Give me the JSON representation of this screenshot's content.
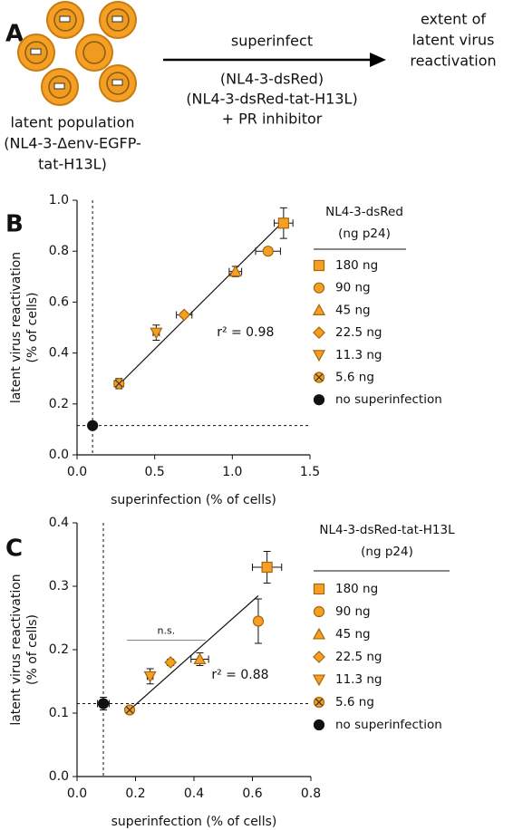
{
  "schematic": {
    "panel_label": "A",
    "arrow_label": "superinfect",
    "arrow_lines": [
      "(NL4-3-dsRed)",
      "(NL4-3-dsRed-tat-H13L)",
      "+ PR inhibitor"
    ],
    "outcome_lines": [
      "extent of",
      "latent virus",
      "reactivation"
    ],
    "population_lines": [
      "latent population",
      "(NL4-3-Δenv-EGFP-",
      "tat-H13L)"
    ]
  },
  "chart_data": [
    {
      "type": "scatter",
      "panel_label": "B",
      "xlabel": "superinfection (% of cells)",
      "ylabel_lines": [
        "latent virus reactivation",
        "(% of cells)"
      ],
      "xlim": [
        0,
        1.5
      ],
      "xticks": [
        {
          "value": 0,
          "label": "0.0"
        },
        0.5,
        {
          "value": 1,
          "label": "1.0"
        },
        1.5
      ],
      "ylim": [
        0,
        1
      ],
      "yticks": [
        {
          "value": 0,
          "label": "0.0"
        },
        0.2,
        0.4,
        0.6,
        0.8,
        {
          "value": 1,
          "label": "1.0"
        }
      ],
      "legend_title_lines": [
        "NL4-3-dsRed",
        "(ng p24)"
      ],
      "reference_x": 0.1,
      "reference_y": 0.115,
      "fit_line": {
        "x": [
          0.26,
          1.35
        ],
        "y": [
          0.27,
          0.93
        ]
      },
      "annotation": "r²  = 0.98",
      "annotation_at": [
        0.9,
        0.48
      ],
      "series": [
        {
          "name": "180 ng",
          "marker": "square",
          "color": "#f5a023",
          "x": [
            1.33
          ],
          "values": [
            0.91
          ],
          "xerr": [
            0.06
          ],
          "yerr": [
            0.06
          ]
        },
        {
          "name": "90 ng",
          "marker": "circle",
          "color": "#f5a023",
          "x": [
            1.23
          ],
          "values": [
            0.8
          ],
          "xerr": [
            0.08
          ],
          "yerr": [
            0.01
          ]
        },
        {
          "name": "45 ng",
          "marker": "triangle-up",
          "color": "#f5a023",
          "x": [
            1.02
          ],
          "values": [
            0.72
          ],
          "xerr": [
            0.04
          ],
          "yerr": [
            0.02
          ]
        },
        {
          "name": "22.5 ng",
          "marker": "diamond",
          "color": "#f5a023",
          "x": [
            0.69
          ],
          "values": [
            0.55
          ],
          "xerr": [
            0.05
          ],
          "yerr": [
            0.01
          ]
        },
        {
          "name": "11.3 ng",
          "marker": "triangle-down",
          "color": "#f5a023",
          "x": [
            0.51
          ],
          "values": [
            0.48
          ],
          "xerr": [
            0.02
          ],
          "yerr": [
            0.03
          ]
        },
        {
          "name": "5.6 ng",
          "marker": "circle-x",
          "color": "#f5a023",
          "x": [
            0.27
          ],
          "values": [
            0.28
          ],
          "xerr": [
            0.03
          ],
          "yerr": [
            0.02
          ]
        },
        {
          "name": "no superinfection",
          "marker": "circle",
          "color": "#111111",
          "x": [
            0.1
          ],
          "values": [
            0.115
          ],
          "xerr": [
            0.01
          ],
          "yerr": [
            0.01
          ]
        }
      ]
    },
    {
      "type": "scatter",
      "panel_label": "C",
      "xlabel": "superinfection (% of cells)",
      "ylabel_lines": [
        "latent virus reactivation",
        "(% of cells)"
      ],
      "xlim": [
        0,
        0.8
      ],
      "xticks": [
        {
          "value": 0,
          "label": "0.0"
        },
        0.2,
        0.4,
        0.6,
        0.8
      ],
      "ylim": [
        0,
        0.4
      ],
      "yticks": [
        {
          "value": 0,
          "label": "0.0"
        },
        0.1,
        0.2,
        0.3,
        0.4
      ],
      "legend_title_lines": [
        "NL4-3-dsRed-tat-H13L",
        "(ng p24)"
      ],
      "reference_x": 0.09,
      "reference_y": 0.115,
      "fit_line": {
        "x": [
          0.18,
          0.62
        ],
        "y": [
          0.105,
          0.285
        ]
      },
      "annotation": "r²  = 0.88",
      "annotation_at": [
        0.46,
        0.16
      ],
      "bracket": {
        "x": [
          0.17,
          0.44
        ],
        "y": 0.215,
        "label": "n.s."
      },
      "series": [
        {
          "name": "180 ng",
          "marker": "square",
          "color": "#f5a023",
          "x": [
            0.65
          ],
          "values": [
            0.33
          ],
          "xerr": [
            0.05
          ],
          "yerr": [
            0.025
          ]
        },
        {
          "name": "90 ng",
          "marker": "circle",
          "color": "#f5a023",
          "x": [
            0.62
          ],
          "values": [
            0.245
          ],
          "xerr": [
            0.01
          ],
          "yerr": [
            0.035
          ]
        },
        {
          "name": "45 ng",
          "marker": "triangle-up",
          "color": "#f5a023",
          "x": [
            0.42
          ],
          "values": [
            0.185
          ],
          "xerr": [
            0.03
          ],
          "yerr": [
            0.01
          ]
        },
        {
          "name": "22.5 ng",
          "marker": "diamond",
          "color": "#f5a023",
          "x": [
            0.32
          ],
          "values": [
            0.18
          ],
          "xerr": [
            0.01
          ],
          "yerr": [
            0.005
          ]
        },
        {
          "name": "11.3 ng",
          "marker": "triangle-down",
          "color": "#f5a023",
          "x": [
            0.25
          ],
          "values": [
            0.158
          ],
          "xerr": [
            0.01
          ],
          "yerr": [
            0.012
          ]
        },
        {
          "name": "5.6 ng",
          "marker": "circle-x",
          "color": "#f5a023",
          "x": [
            0.18
          ],
          "values": [
            0.105
          ],
          "xerr": [
            0.01
          ],
          "yerr": [
            0.005
          ]
        },
        {
          "name": "no superinfection",
          "marker": "circle",
          "color": "#111111",
          "x": [
            0.09
          ],
          "values": [
            0.115
          ],
          "xerr": [
            0.02
          ],
          "yerr": [
            0.01
          ]
        }
      ]
    }
  ]
}
